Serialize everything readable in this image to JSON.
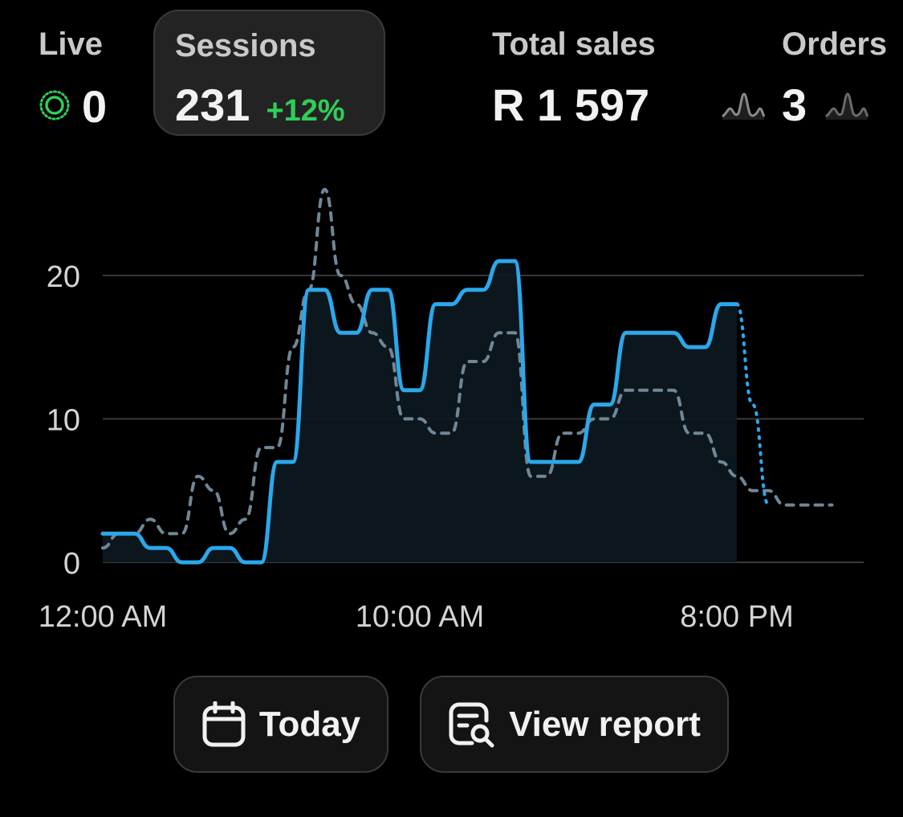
{
  "metrics": {
    "live": {
      "label": "Live",
      "value": "0",
      "icon": "live-indicator-icon"
    },
    "sessions": {
      "label": "Sessions",
      "value": "231",
      "delta": "+12%",
      "delta_color": "#2fce58"
    },
    "total_sales": {
      "label": "Total sales",
      "value": "R 1 597"
    },
    "orders": {
      "label": "Orders",
      "value": "3",
      "icon": "sparkline-icon"
    }
  },
  "buttons": {
    "today": {
      "label": "Today",
      "icon": "calendar-icon"
    },
    "view_report": {
      "label": "View report",
      "icon": "report-search-icon"
    }
  },
  "chart_data": {
    "type": "line",
    "title": "",
    "xlabel": "",
    "ylabel": "",
    "ylim": [
      0,
      28
    ],
    "yticks": [
      0,
      10,
      20
    ],
    "xlim": [
      0,
      24
    ],
    "xticks": [
      {
        "x": 0,
        "label": "12:00 AM"
      },
      {
        "x": 10,
        "label": "10:00 AM"
      },
      {
        "x": 20,
        "label": "8:00 PM"
      }
    ],
    "grid": true,
    "colors": {
      "current": "#2aa8eb",
      "previous": "#6f8796",
      "grid": "#3a3a3a",
      "fill": "#0d1820"
    },
    "series": [
      {
        "key": "current",
        "style": "solid",
        "x": [
          0,
          0.5,
          1,
          1.5,
          2,
          2.5,
          3,
          3.5,
          4,
          4.5,
          5,
          5.5,
          6,
          6.5,
          7,
          7.5,
          8,
          8.5,
          9,
          9.5,
          10,
          10.5,
          11,
          11.5,
          12,
          12.5,
          13,
          13.5,
          14,
          14.5,
          15,
          15.5,
          16,
          16.5,
          17,
          17.5,
          18,
          18.5,
          19,
          19.5,
          20
        ],
        "values": [
          2,
          2,
          2,
          1,
          1,
          0,
          0,
          1,
          1,
          0,
          0,
          7,
          7,
          19,
          19,
          16,
          16,
          19,
          19,
          12,
          12,
          18,
          18,
          19,
          19,
          21,
          21,
          7,
          7,
          7,
          7,
          11,
          11,
          16,
          16,
          16,
          16,
          15,
          15,
          18,
          18
        ]
      },
      {
        "key": "current_projection",
        "style": "dotted",
        "x": [
          20,
          20.5,
          21
        ],
        "values": [
          18,
          11,
          4
        ]
      },
      {
        "key": "previous",
        "style": "dashed",
        "x": [
          0,
          0.5,
          1,
          1.5,
          2,
          2.5,
          3,
          3.5,
          4,
          4.5,
          5,
          5.5,
          6,
          6.5,
          7,
          7.5,
          8,
          8.5,
          9,
          9.5,
          10,
          10.5,
          11,
          11.5,
          12,
          12.5,
          13,
          13.5,
          14,
          14.5,
          15,
          15.5,
          16,
          16.5,
          17,
          17.5,
          18,
          18.5,
          19,
          19.5,
          20,
          20.5,
          21,
          21.5,
          22,
          22.5,
          23
        ],
        "values": [
          1,
          2,
          2,
          3,
          2,
          2,
          6,
          5,
          2,
          3,
          8,
          8,
          15,
          19,
          26,
          20,
          18,
          16,
          15,
          10,
          10,
          9,
          9,
          14,
          14,
          16,
          16,
          6,
          6,
          9,
          9,
          10,
          10,
          12,
          12,
          12,
          12,
          9,
          9,
          7,
          6,
          5,
          5,
          4,
          4,
          4,
          4
        ]
      }
    ]
  }
}
